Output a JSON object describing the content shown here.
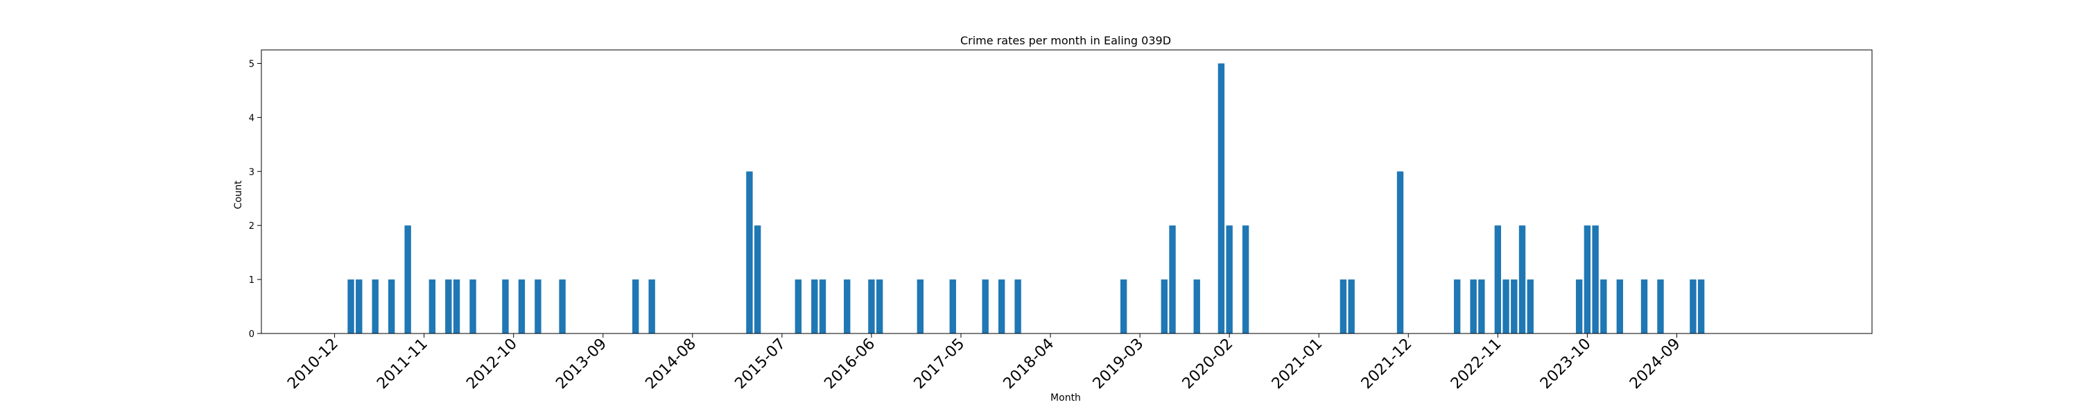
{
  "chart_data": {
    "type": "bar",
    "title": "Crime rates per month in Ealing 039D",
    "xlabel": "Month",
    "ylabel": "Count",
    "ylim": [
      0,
      5.25
    ],
    "yticks": [
      0,
      1,
      2,
      3,
      4,
      5
    ],
    "xlim": [
      "2010-03",
      "2026-09"
    ],
    "xticks": [
      "2010-12",
      "2011-11",
      "2012-10",
      "2013-09",
      "2014-08",
      "2015-07",
      "2016-06",
      "2017-05",
      "2018-04",
      "2019-03",
      "2020-02",
      "2021-01",
      "2021-12",
      "2022-11",
      "2023-10",
      "2024-09"
    ],
    "bar_color": "#1f77b4",
    "x": [
      "2011-02",
      "2011-03",
      "2011-05",
      "2011-07",
      "2011-09",
      "2011-12",
      "2012-02",
      "2012-03",
      "2012-05",
      "2012-09",
      "2012-11",
      "2013-01",
      "2013-04",
      "2014-01",
      "2014-03",
      "2015-03",
      "2015-04",
      "2015-09",
      "2015-11",
      "2015-12",
      "2016-03",
      "2016-06",
      "2016-07",
      "2016-12",
      "2017-04",
      "2017-08",
      "2017-10",
      "2017-12",
      "2019-01",
      "2019-06",
      "2019-07",
      "2019-10",
      "2020-01",
      "2020-02",
      "2020-04",
      "2021-04",
      "2021-05",
      "2021-11",
      "2022-06",
      "2022-08",
      "2022-09",
      "2022-11",
      "2022-12",
      "2023-01",
      "2023-02",
      "2023-03",
      "2023-09",
      "2023-10",
      "2023-11",
      "2023-12",
      "2024-02",
      "2024-05",
      "2024-07",
      "2024-11",
      "2024-12"
    ],
    "values": [
      1,
      1,
      1,
      1,
      2,
      1,
      1,
      1,
      1,
      1,
      1,
      1,
      1,
      1,
      1,
      3,
      2,
      1,
      1,
      1,
      1,
      1,
      1,
      1,
      1,
      1,
      1,
      1,
      1,
      1,
      2,
      1,
      5,
      2,
      2,
      1,
      1,
      3,
      1,
      1,
      1,
      2,
      1,
      1,
      2,
      1,
      1,
      2,
      2,
      1,
      1,
      1,
      1,
      1,
      1
    ]
  }
}
